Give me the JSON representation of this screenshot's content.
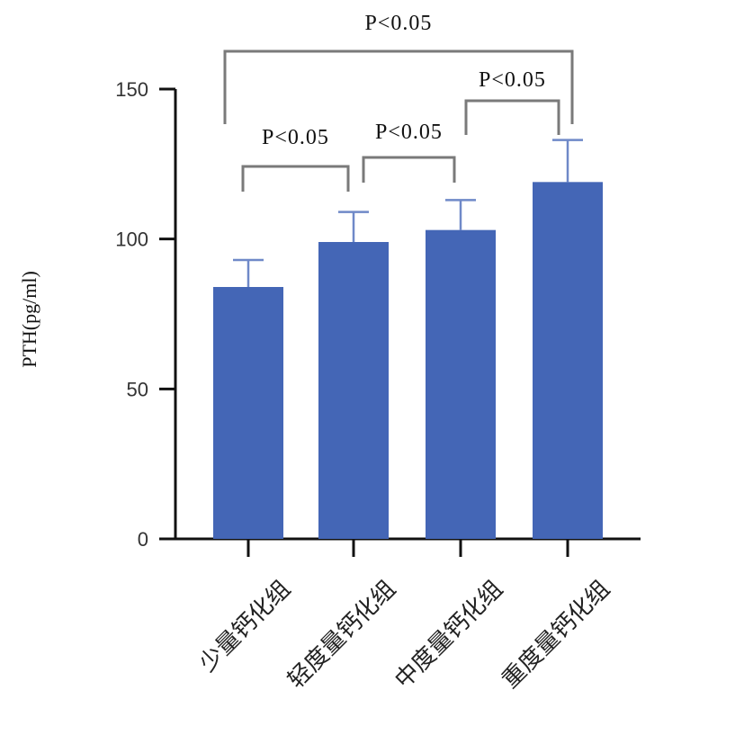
{
  "chart_data": {
    "type": "bar",
    "categories": [
      "少量钙化组",
      "轻度量钙化组",
      "中度量钙化组",
      "重度量钙化组"
    ],
    "values": [
      84,
      99,
      103,
      119
    ],
    "errors": [
      9,
      10,
      10,
      14
    ],
    "ylabel": "PTH(pg/ml)",
    "ylim": [
      0,
      150
    ],
    "yticks": [
      0,
      50,
      100,
      150
    ],
    "bar_color": "#4466b6",
    "error_color": "#6f89c8",
    "bracket_color": "#7a7a7a",
    "grid": false,
    "legend": "none",
    "significance": [
      {
        "from": 0,
        "to": 1,
        "label": "P<0.05"
      },
      {
        "from": 1,
        "to": 2,
        "label": "P<0.05"
      },
      {
        "from": 2,
        "to": 3,
        "label": "P<0.05"
      },
      {
        "from": 0,
        "to": 3,
        "label": "P<0.05"
      }
    ]
  }
}
